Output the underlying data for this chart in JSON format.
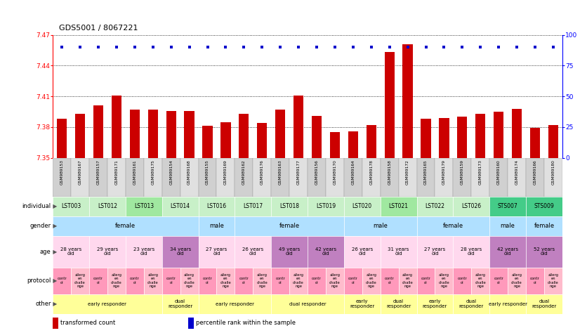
{
  "title": "GDS5001 / 8067221",
  "gsm_labels": [
    "GSM989153",
    "GSM989167",
    "GSM989157",
    "GSM989171",
    "GSM989161",
    "GSM989175",
    "GSM989154",
    "GSM989168",
    "GSM989155",
    "GSM989169",
    "GSM989162",
    "GSM989176",
    "GSM989163",
    "GSM989177",
    "GSM989156",
    "GSM989170",
    "GSM989164",
    "GSM989178",
    "GSM989158",
    "GSM989172",
    "GSM989165",
    "GSM989179",
    "GSM989159",
    "GSM989173",
    "GSM989160",
    "GSM989174",
    "GSM989166",
    "GSM989180"
  ],
  "bar_values": [
    7.388,
    7.393,
    7.401,
    7.411,
    7.397,
    7.397,
    7.396,
    7.396,
    7.381,
    7.385,
    7.393,
    7.384,
    7.397,
    7.411,
    7.391,
    7.375,
    7.376,
    7.382,
    7.453,
    7.461,
    7.388,
    7.389,
    7.39,
    7.393,
    7.395,
    7.398,
    7.379,
    7.382
  ],
  "percentile_values": [
    90,
    90,
    90,
    90,
    90,
    90,
    90,
    90,
    90,
    90,
    90,
    90,
    90,
    90,
    90,
    90,
    90,
    90,
    90,
    90,
    90,
    90,
    90,
    90,
    90,
    90,
    90,
    90
  ],
  "ylim_left": [
    7.35,
    7.47
  ],
  "ylim_right": [
    0,
    100
  ],
  "yticks_left": [
    7.35,
    7.38,
    7.41,
    7.44,
    7.47
  ],
  "yticks_right": [
    0,
    25,
    50,
    75,
    100
  ],
  "bar_color": "#cc0000",
  "dot_color": "#0000cc",
  "bar_bottom": 7.35,
  "individuals": [
    {
      "label": "LST003",
      "start": 0,
      "end": 2,
      "color": "#c8f0c8"
    },
    {
      "label": "LST012",
      "start": 2,
      "end": 4,
      "color": "#c8f0c8"
    },
    {
      "label": "LST013",
      "start": 4,
      "end": 6,
      "color": "#a0e8a0"
    },
    {
      "label": "LST014",
      "start": 6,
      "end": 8,
      "color": "#c8f0c8"
    },
    {
      "label": "LST016",
      "start": 8,
      "end": 10,
      "color": "#c8f0c8"
    },
    {
      "label": "LST017",
      "start": 10,
      "end": 12,
      "color": "#c8f0c8"
    },
    {
      "label": "LST018",
      "start": 12,
      "end": 14,
      "color": "#c8f0c8"
    },
    {
      "label": "LST019",
      "start": 14,
      "end": 16,
      "color": "#c8f0c8"
    },
    {
      "label": "LST020",
      "start": 16,
      "end": 18,
      "color": "#c8f0c8"
    },
    {
      "label": "LST021",
      "start": 18,
      "end": 20,
      "color": "#a0e8a0"
    },
    {
      "label": "LST022",
      "start": 20,
      "end": 22,
      "color": "#c8f0c8"
    },
    {
      "label": "LST026",
      "start": 22,
      "end": 24,
      "color": "#c8f0c8"
    },
    {
      "label": "STS007",
      "start": 24,
      "end": 26,
      "color": "#44cc88"
    },
    {
      "label": "STS009",
      "start": 26,
      "end": 28,
      "color": "#44cc88"
    }
  ],
  "gender_blocks": [
    {
      "label": "female",
      "start": 0,
      "end": 8,
      "color": "#b0e0ff"
    },
    {
      "label": "male",
      "start": 8,
      "end": 10,
      "color": "#b0e0ff"
    },
    {
      "label": "female",
      "start": 10,
      "end": 16,
      "color": "#b0e0ff"
    },
    {
      "label": "male",
      "start": 16,
      "end": 20,
      "color": "#b0e0ff"
    },
    {
      "label": "female",
      "start": 20,
      "end": 24,
      "color": "#b0e0ff"
    },
    {
      "label": "male",
      "start": 24,
      "end": 26,
      "color": "#b0e0ff"
    },
    {
      "label": "female",
      "start": 26,
      "end": 28,
      "color": "#b0e0ff"
    }
  ],
  "age_blocks": [
    {
      "label": "28 years\nold",
      "start": 0,
      "end": 2,
      "color": "#ffd8ee"
    },
    {
      "label": "29 years\nold",
      "start": 2,
      "end": 4,
      "color": "#ffd8ee"
    },
    {
      "label": "23 years\nold",
      "start": 4,
      "end": 6,
      "color": "#ffd8ee"
    },
    {
      "label": "34 years\nold",
      "start": 6,
      "end": 8,
      "color": "#c080c0"
    },
    {
      "label": "27 years\nold",
      "start": 8,
      "end": 10,
      "color": "#ffd8ee"
    },
    {
      "label": "26 years\nold",
      "start": 10,
      "end": 12,
      "color": "#ffd8ee"
    },
    {
      "label": "49 years\nold",
      "start": 12,
      "end": 14,
      "color": "#c080c0"
    },
    {
      "label": "42 years\nold",
      "start": 14,
      "end": 16,
      "color": "#c080c0"
    },
    {
      "label": "26 years\nold",
      "start": 16,
      "end": 18,
      "color": "#ffd8ee"
    },
    {
      "label": "31 years\nold",
      "start": 18,
      "end": 20,
      "color": "#ffd8ee"
    },
    {
      "label": "27 years\nold",
      "start": 20,
      "end": 22,
      "color": "#ffd8ee"
    },
    {
      "label": "28 years\nold",
      "start": 22,
      "end": 24,
      "color": "#ffd8ee"
    },
    {
      "label": "42 years\nold",
      "start": 24,
      "end": 26,
      "color": "#c080c0"
    },
    {
      "label": "52 years\nold",
      "start": 26,
      "end": 28,
      "color": "#c080c0"
    }
  ],
  "protocol_blocks": [
    {
      "label": "contr\nol",
      "start": 0,
      "end": 1,
      "color": "#ff99bb"
    },
    {
      "label": "allerg\nen\nchalle\nnge",
      "start": 1,
      "end": 2,
      "color": "#ffbbcc"
    },
    {
      "label": "contr\nol",
      "start": 2,
      "end": 3,
      "color": "#ff99bb"
    },
    {
      "label": "allerg\nen\nchalle\nnge",
      "start": 3,
      "end": 4,
      "color": "#ffbbcc"
    },
    {
      "label": "contr\nol",
      "start": 4,
      "end": 5,
      "color": "#ff99bb"
    },
    {
      "label": "allerg\nen\nchalle\nnge",
      "start": 5,
      "end": 6,
      "color": "#ffbbcc"
    },
    {
      "label": "contr\nol",
      "start": 6,
      "end": 7,
      "color": "#ff99bb"
    },
    {
      "label": "allerg\nen\nchalle\nnge",
      "start": 7,
      "end": 8,
      "color": "#ffbbcc"
    },
    {
      "label": "contr\nol",
      "start": 8,
      "end": 9,
      "color": "#ff99bb"
    },
    {
      "label": "allerg\nen\nchalle\nnge",
      "start": 9,
      "end": 10,
      "color": "#ffbbcc"
    },
    {
      "label": "contr\nol",
      "start": 10,
      "end": 11,
      "color": "#ff99bb"
    },
    {
      "label": "allerg\nen\nchalle\nnge",
      "start": 11,
      "end": 12,
      "color": "#ffbbcc"
    },
    {
      "label": "contr\nol",
      "start": 12,
      "end": 13,
      "color": "#ff99bb"
    },
    {
      "label": "allerg\nen\nchalle\nnge",
      "start": 13,
      "end": 14,
      "color": "#ffbbcc"
    },
    {
      "label": "contr\nol",
      "start": 14,
      "end": 15,
      "color": "#ff99bb"
    },
    {
      "label": "allerg\nen\nchalle\nnge",
      "start": 15,
      "end": 16,
      "color": "#ffbbcc"
    },
    {
      "label": "contr\nol",
      "start": 16,
      "end": 17,
      "color": "#ff99bb"
    },
    {
      "label": "allerg\nen\nchalle\nnge",
      "start": 17,
      "end": 18,
      "color": "#ffbbcc"
    },
    {
      "label": "contr\nol",
      "start": 18,
      "end": 19,
      "color": "#ff99bb"
    },
    {
      "label": "allerg\nen\nchalle\nnge",
      "start": 19,
      "end": 20,
      "color": "#ffbbcc"
    },
    {
      "label": "contr\nol",
      "start": 20,
      "end": 21,
      "color": "#ff99bb"
    },
    {
      "label": "allerg\nen\nchalle\nnge",
      "start": 21,
      "end": 22,
      "color": "#ffbbcc"
    },
    {
      "label": "contr\nol",
      "start": 22,
      "end": 23,
      "color": "#ff99bb"
    },
    {
      "label": "allerg\nen\nchalle\nnge",
      "start": 23,
      "end": 24,
      "color": "#ffbbcc"
    },
    {
      "label": "contr\nol",
      "start": 24,
      "end": 25,
      "color": "#ff99bb"
    },
    {
      "label": "allerg\nen\nchalle\nnge",
      "start": 25,
      "end": 26,
      "color": "#ffbbcc"
    },
    {
      "label": "contr\nol",
      "start": 26,
      "end": 27,
      "color": "#ff99bb"
    },
    {
      "label": "allerg\nen\nchalle\nnge",
      "start": 27,
      "end": 28,
      "color": "#ffbbcc"
    }
  ],
  "other_blocks": [
    {
      "label": "early responder",
      "start": 0,
      "end": 6,
      "color": "#ffff99"
    },
    {
      "label": "dual\nresponder",
      "start": 6,
      "end": 8,
      "color": "#ffff99"
    },
    {
      "label": "early responder",
      "start": 8,
      "end": 12,
      "color": "#ffff99"
    },
    {
      "label": "dual responder",
      "start": 12,
      "end": 16,
      "color": "#ffff99"
    },
    {
      "label": "early\nresponder",
      "start": 16,
      "end": 18,
      "color": "#ffff99"
    },
    {
      "label": "dual\nresponder",
      "start": 18,
      "end": 20,
      "color": "#ffff99"
    },
    {
      "label": "early\nresponder",
      "start": 20,
      "end": 22,
      "color": "#ffff99"
    },
    {
      "label": "dual\nresponder",
      "start": 22,
      "end": 24,
      "color": "#ffff99"
    },
    {
      "label": "early responder",
      "start": 24,
      "end": 26,
      "color": "#ffff99"
    },
    {
      "label": "dual\nresponder",
      "start": 26,
      "end": 28,
      "color": "#ffff99"
    }
  ],
  "legend_items": [
    {
      "color": "#cc0000",
      "label": "transformed count"
    },
    {
      "color": "#0000cc",
      "label": "percentile rank within the sample"
    }
  ]
}
